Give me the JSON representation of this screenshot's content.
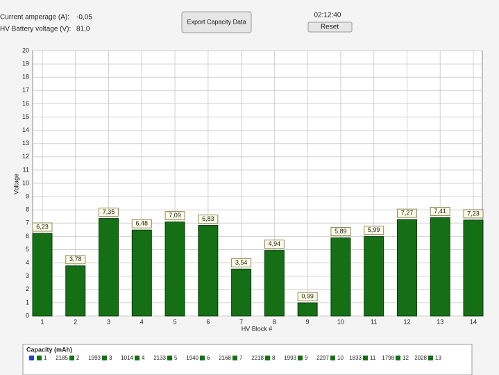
{
  "header": {
    "amperage_label": "Current amperage (A):",
    "amperage_value": "-0,05",
    "voltage_label": "HV Battery voltage (V):",
    "voltage_value": "81,0",
    "export_button": "Export Capacity Data",
    "time": "02:12:40",
    "reset_button": "Reset"
  },
  "chart_data": {
    "type": "bar",
    "x_label": "HV Block #",
    "y_label": "Voltage",
    "categories": [
      "1",
      "2",
      "3",
      "4",
      "5",
      "6",
      "7",
      "8",
      "9",
      "10",
      "11",
      "12",
      "13",
      "14"
    ],
    "values": [
      6.23,
      3.78,
      7.35,
      6.48,
      7.09,
      6.83,
      3.54,
      4.94,
      0.99,
      5.89,
      5.99,
      7.27,
      7.41,
      7.23
    ],
    "value_labels": [
      "6,23",
      "3,78",
      "7,35",
      "6,48",
      "7,09",
      "6,83",
      "3,54",
      "4,94",
      "0,99",
      "5,89",
      "5,99",
      "7,27",
      "7,41",
      "7,23"
    ],
    "color": "#157015",
    "ylim": [
      0,
      20
    ],
    "yticks": [
      0,
      1,
      2,
      3,
      4,
      5,
      6,
      7,
      8,
      9,
      10,
      11,
      12,
      13,
      14,
      15,
      16,
      17,
      18,
      19,
      20
    ],
    "grid": true
  },
  "legend": {
    "title": "Capacity (mAh)",
    "entries": [
      {
        "name": "1",
        "value": "2185"
      },
      {
        "name": "2",
        "value": "1993"
      },
      {
        "name": "3",
        "value": "1014"
      },
      {
        "name": "4",
        "value": "2133"
      },
      {
        "name": "5",
        "value": "1940"
      },
      {
        "name": "6",
        "value": "2168"
      },
      {
        "name": "7",
        "value": "2218"
      },
      {
        "name": "8",
        "value": "1993"
      },
      {
        "name": "9",
        "value": "2297"
      },
      {
        "name": "10",
        "value": "1833"
      },
      {
        "name": "11",
        "value": "1798"
      },
      {
        "name": "12",
        "value": "2028"
      },
      {
        "name": "13"
      }
    ]
  }
}
